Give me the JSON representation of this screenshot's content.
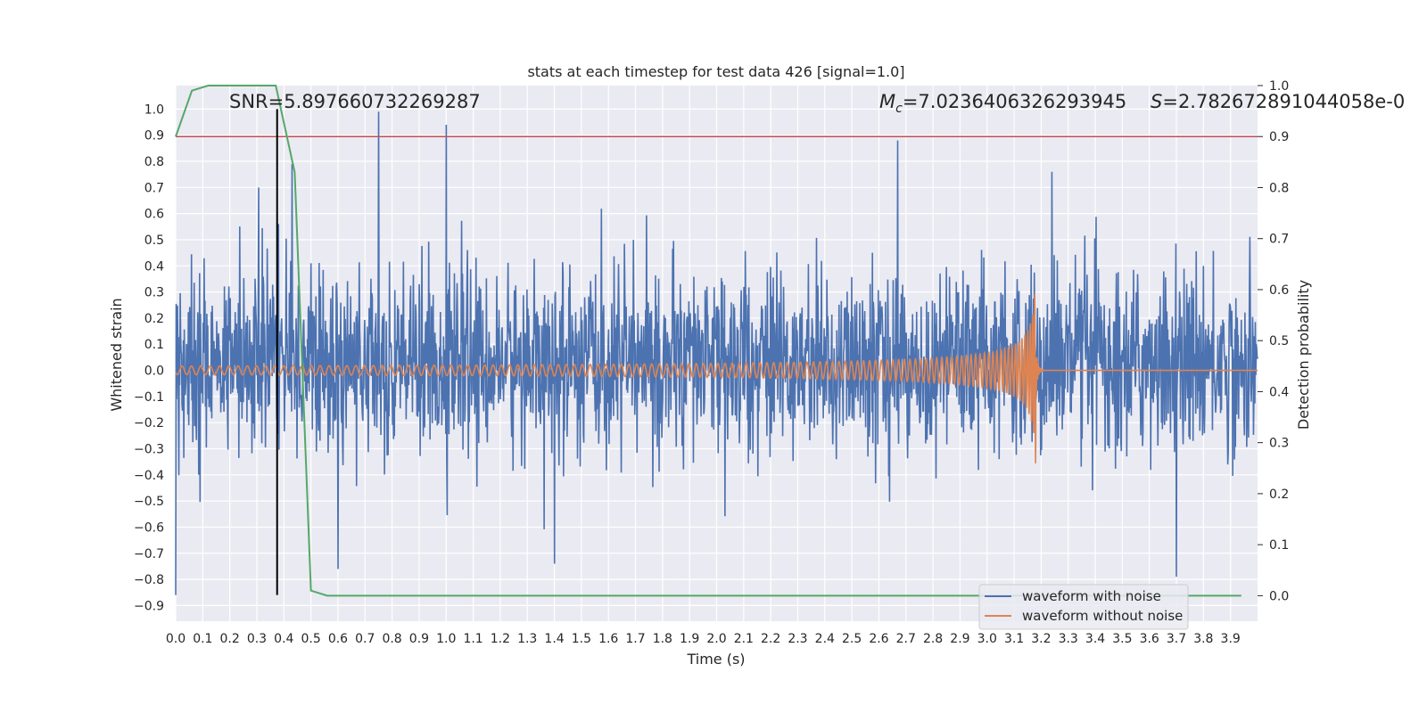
{
  "chart_data": {
    "type": "line",
    "title": "stats at each timestep for test data 426 [signal=1.0]",
    "xlabel": "Time (s)",
    "ylabel": "Whitened strain",
    "ylabel_right": "Detection probability",
    "xlim": [
      0.0,
      4.0
    ],
    "ylim": [
      -0.96,
      1.09
    ],
    "ylim_right": [
      -0.05,
      1.0
    ],
    "x_ticks": [
      "0.0",
      "0.1",
      "0.2",
      "0.3",
      "0.4",
      "0.5",
      "0.6",
      "0.7",
      "0.8",
      "0.9",
      "1.0",
      "1.1",
      "1.2",
      "1.3",
      "1.4",
      "1.5",
      "1.6",
      "1.7",
      "1.8",
      "1.9",
      "2.0",
      "2.1",
      "2.2",
      "2.3",
      "2.4",
      "2.5",
      "2.6",
      "2.7",
      "2.8",
      "2.9",
      "3.0",
      "3.1",
      "3.2",
      "3.3",
      "3.4",
      "3.5",
      "3.6",
      "3.7",
      "3.8",
      "3.9"
    ],
    "y_ticks": [
      "1.0",
      "0.9",
      "0.8",
      "0.7",
      "0.6",
      "0.5",
      "0.4",
      "0.3",
      "0.2",
      "0.1",
      "0.0",
      "−0.1",
      "−0.2",
      "−0.3",
      "−0.4",
      "−0.5",
      "−0.6",
      "−0.7",
      "−0.8",
      "−0.9"
    ],
    "y_ticks_right": [
      "1.0",
      "0.9",
      "0.8",
      "0.7",
      "0.6",
      "0.5",
      "0.4",
      "0.3",
      "0.2",
      "0.1",
      "0.0"
    ],
    "grid": true,
    "legend_position": "bottom-right",
    "annotations": {
      "snr": "SNR=5.897660732269287",
      "mc": "M_c=7.0236406326293945",
      "mc_prefix": "M",
      "mc_sub": "c",
      "mc_value": "=7.0236406326293945",
      "s_prefix": "S",
      "s_value": "=2.782672891044058e-0"
    },
    "threshold": 0.9,
    "marker_time": 0.375,
    "series": [
      {
        "name": "waveform with noise",
        "color": "#4c72b0",
        "description": "dense noise, roughly within -0.45..0.55 with spikes",
        "spikes": [
          [
            0.0,
            -0.86
          ],
          [
            0.38,
            0.56
          ],
          [
            0.43,
            0.79
          ],
          [
            0.75,
            0.99
          ],
          [
            1.0,
            0.94
          ],
          [
            2.67,
            0.88
          ],
          [
            3.24,
            0.76
          ],
          [
            3.7,
            -0.79
          ],
          [
            1.4,
            -0.74
          ],
          [
            0.6,
            -0.76
          ]
        ]
      },
      {
        "name": "waveform without noise",
        "color": "#dd8452",
        "description": "chirp with growing amplitude ending near 3.18 s",
        "merger_time": 3.18,
        "peak": 0.2
      },
      {
        "name": "detection probability",
        "color": "#55a868",
        "x": [
          0.0,
          0.06,
          0.12,
          0.19,
          0.25,
          0.31,
          0.37,
          0.44,
          0.5,
          0.56,
          0.62,
          0.69,
          3.94
        ],
        "y": [
          0.9,
          0.99,
          1.0,
          1.0,
          1.0,
          1.0,
          1.0,
          0.83,
          0.01,
          0.0,
          0.0,
          0.0,
          0.0
        ]
      }
    ],
    "colors": {
      "background": "#eaeaf2",
      "grid": "#ffffff",
      "threshold_line": "#c44e52",
      "marker_line": "#000000",
      "text": "#262626"
    }
  }
}
